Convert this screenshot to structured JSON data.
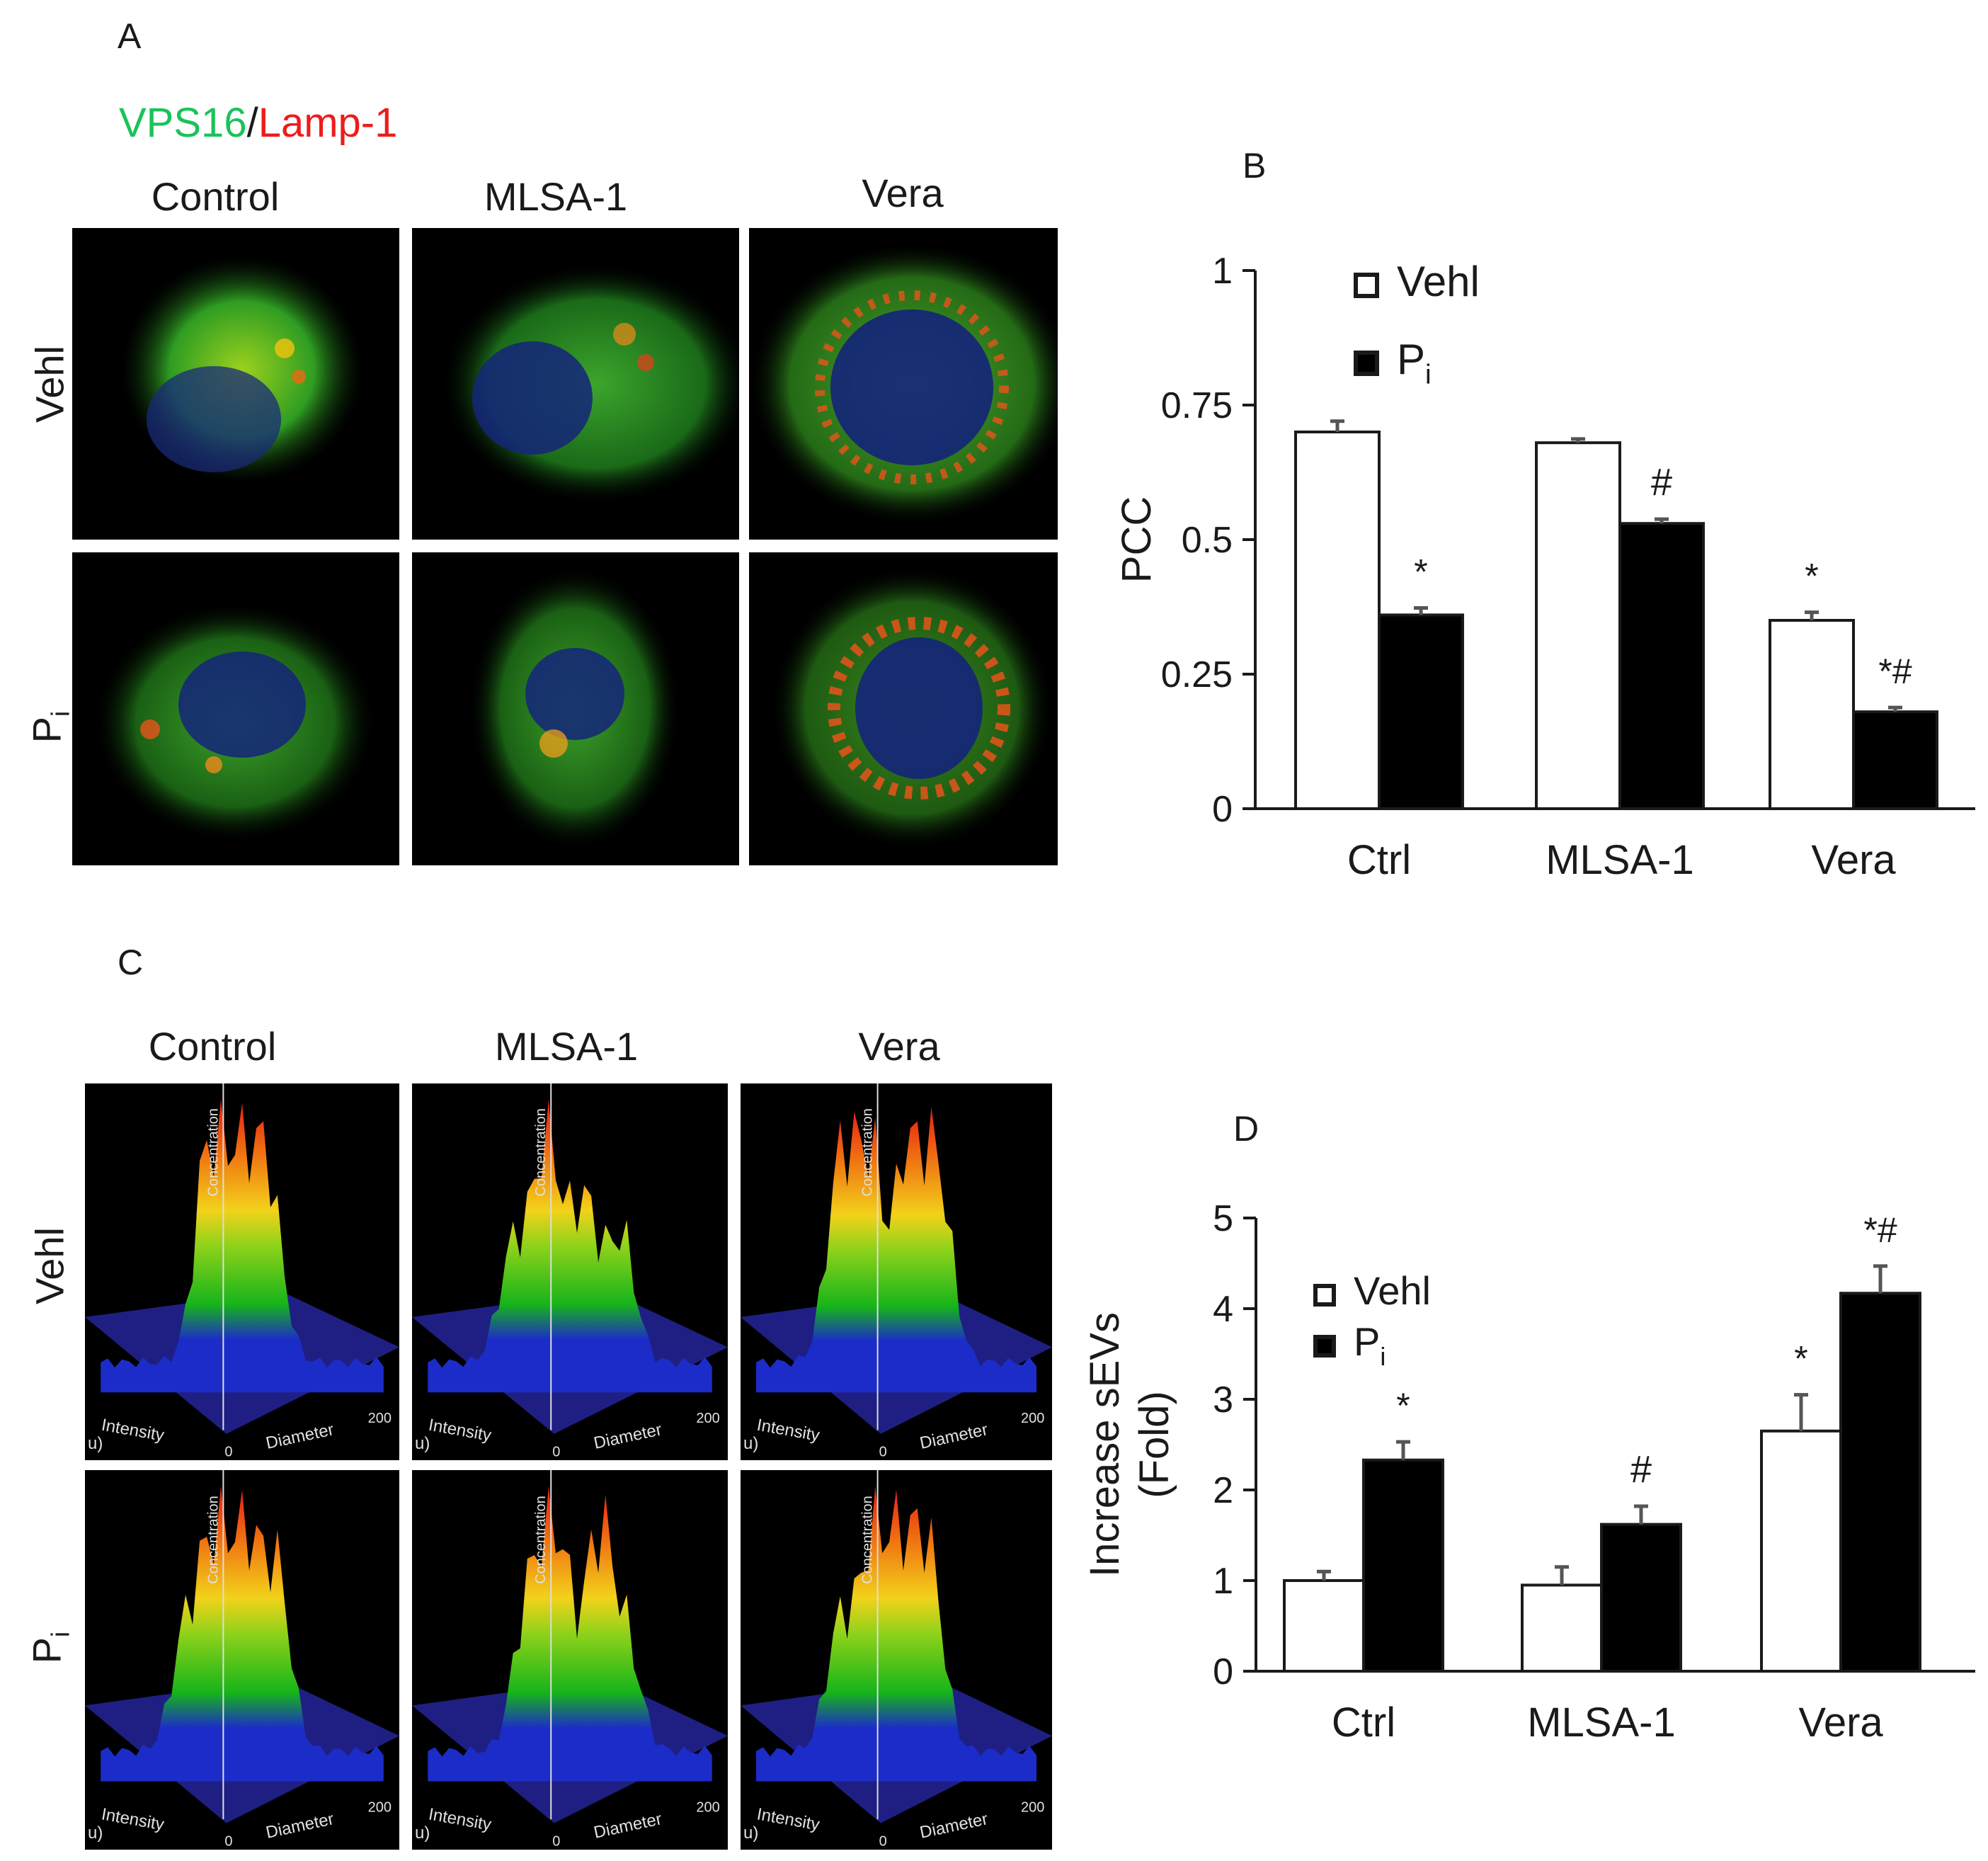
{
  "panel_a": {
    "letter": "A",
    "stain_green": "VPS16",
    "stain_sep": "/",
    "stain_red": "Lamp-1",
    "green_color": "#19c35a",
    "red_color": "#ee1c1c",
    "columns": [
      "Control",
      "MLSA-1",
      "Vera"
    ],
    "rows": [
      "Vehl",
      "P",
      "i"
    ]
  },
  "panel_c": {
    "letter": "C",
    "columns": [
      "Control",
      "MLSA-1",
      "Vera"
    ],
    "rows": [
      "Vehl",
      "P",
      "i"
    ],
    "axis_labels": {
      "intensity": "Intensity",
      "diameter": "Diameter",
      "concentration": "Concentration",
      "zero": "0",
      "left_fragment": "u)",
      "right_fragment": "200"
    }
  },
  "chart_data": [
    {
      "panel": "B",
      "type": "bar",
      "ylabel": "PCC",
      "categories": [
        "Ctrl",
        "MLSA-1",
        "Vera"
      ],
      "ylim": [
        0,
        1
      ],
      "yticks": [
        "0",
        "0.25",
        "0.5",
        "0.75",
        "1"
      ],
      "series": [
        {
          "name": "Vehl",
          "fill": "#ffffff",
          "values": [
            0.7,
            0.68,
            0.35
          ],
          "errors": [
            0.02,
            0.007,
            0.015
          ]
        },
        {
          "name": "P",
          "name_sub": "i",
          "fill": "#000000",
          "values": [
            0.36,
            0.53,
            0.18
          ],
          "errors": [
            0.013,
            0.008,
            0.008
          ]
        }
      ],
      "annotations": [
        {
          "category": 0,
          "series": 1,
          "text": "*"
        },
        {
          "category": 1,
          "series": 1,
          "text": "#"
        },
        {
          "category": 2,
          "series": 0,
          "text": "*"
        },
        {
          "category": 2,
          "series": 1,
          "text": "*#"
        }
      ],
      "legend_position": "top-left",
      "grid": false
    },
    {
      "panel": "D",
      "type": "bar",
      "ylabel_line1": "Increase sEVs",
      "ylabel_line2": "(Fold)",
      "categories": [
        "Ctrl",
        "MLSA-1",
        "Vera"
      ],
      "ylim": [
        0,
        5
      ],
      "yticks": [
        "0",
        "1",
        "2",
        "3",
        "4",
        "5"
      ],
      "series": [
        {
          "name": "Vehl",
          "fill": "#ffffff",
          "values": [
            1.0,
            0.95,
            2.65
          ],
          "errors": [
            0.1,
            0.2,
            0.4
          ]
        },
        {
          "name": "P",
          "name_sub": "i",
          "fill": "#000000",
          "values": [
            2.33,
            1.62,
            4.17
          ],
          "errors": [
            0.2,
            0.2,
            0.3
          ]
        }
      ],
      "annotations": [
        {
          "category": 0,
          "series": 1,
          "text": "*"
        },
        {
          "category": 1,
          "series": 1,
          "text": "#"
        },
        {
          "category": 2,
          "series": 0,
          "text": "*"
        },
        {
          "category": 2,
          "series": 1,
          "text": "*#"
        }
      ],
      "legend_position": "top-left",
      "grid": false
    }
  ]
}
